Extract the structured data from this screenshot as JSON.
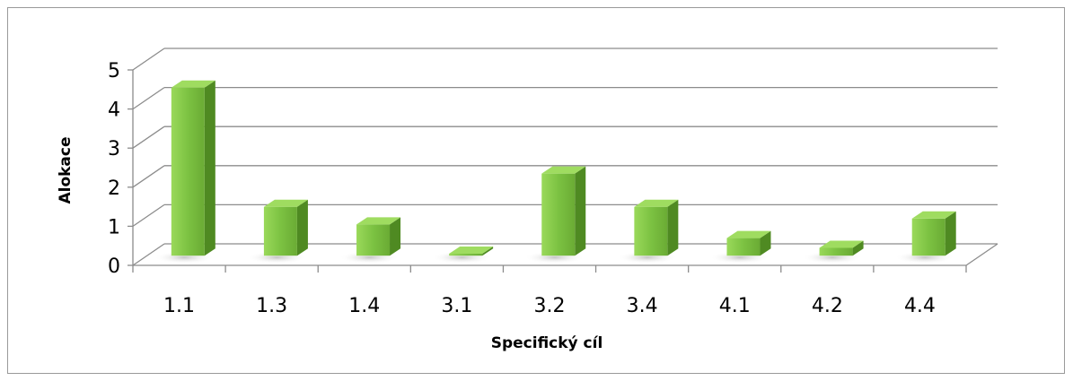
{
  "chart_data": {
    "type": "bar",
    "style": "3d-column",
    "categories": [
      "1.1",
      "1.3",
      "1.4",
      "3.1",
      "3.2",
      "3.4",
      "4.1",
      "4.2",
      "4.4"
    ],
    "values": [
      4.3,
      1.25,
      0.8,
      0.05,
      2.1,
      1.25,
      0.45,
      0.2,
      0.95
    ],
    "title": "",
    "xlabel": "Specifický cíl",
    "ylabel": "Alokace",
    "ylim": [
      0,
      5
    ],
    "yticks": [
      0,
      1,
      2,
      3,
      4,
      5
    ],
    "grid": true,
    "legend": "none",
    "colors": {
      "bar_front": "#7cc242",
      "bar_side": "#4f8a22",
      "bar_top": "#9fdc60",
      "grid": "#8c8c8c",
      "floor_shadow": "#d9d9d9"
    }
  }
}
